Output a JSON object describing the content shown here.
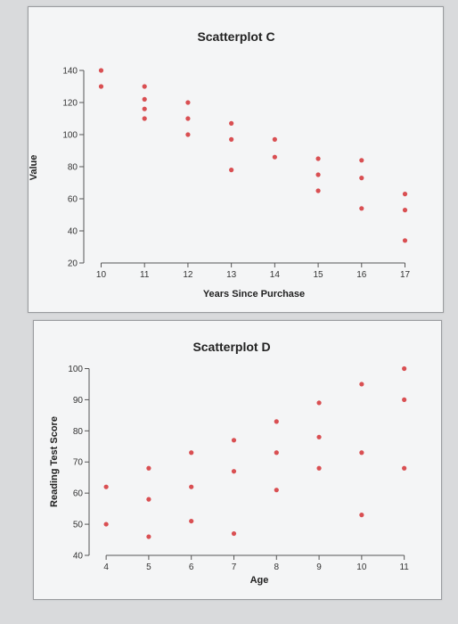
{
  "chart_data": [
    {
      "type": "scatter",
      "title": "Scatterplot C",
      "xlabel": "Years Since Purchase",
      "ylabel": "Value",
      "xlim": [
        9.6,
        17.4
      ],
      "ylim": [
        20,
        145
      ],
      "xticks": [
        10,
        11,
        12,
        13,
        14,
        15,
        16,
        17
      ],
      "yticks": [
        20,
        40,
        60,
        80,
        100,
        120,
        140
      ],
      "points": [
        {
          "x": 10,
          "y": 140
        },
        {
          "x": 10,
          "y": 130
        },
        {
          "x": 11,
          "y": 130
        },
        {
          "x": 11,
          "y": 122
        },
        {
          "x": 11,
          "y": 116
        },
        {
          "x": 11,
          "y": 110
        },
        {
          "x": 12,
          "y": 120
        },
        {
          "x": 12,
          "y": 110
        },
        {
          "x": 12,
          "y": 100
        },
        {
          "x": 13,
          "y": 107
        },
        {
          "x": 13,
          "y": 97
        },
        {
          "x": 13,
          "y": 78
        },
        {
          "x": 14,
          "y": 97
        },
        {
          "x": 14,
          "y": 86
        },
        {
          "x": 15,
          "y": 85
        },
        {
          "x": 15,
          "y": 75
        },
        {
          "x": 15,
          "y": 65
        },
        {
          "x": 16,
          "y": 84
        },
        {
          "x": 16,
          "y": 73
        },
        {
          "x": 16,
          "y": 54
        },
        {
          "x": 17,
          "y": 63
        },
        {
          "x": 17,
          "y": 53
        },
        {
          "x": 17,
          "y": 34
        }
      ],
      "color": "#d94f52"
    },
    {
      "type": "scatter",
      "title": "Scatterplot D",
      "xlabel": "Age",
      "ylabel": "Reading Test Score",
      "xlim": [
        3.6,
        11.3
      ],
      "ylim": [
        40,
        101
      ],
      "xticks": [
        4,
        5,
        6,
        7,
        8,
        9,
        10,
        11
      ],
      "yticks": [
        40,
        50,
        60,
        70,
        80,
        90,
        100
      ],
      "points": [
        {
          "x": 4,
          "y": 62
        },
        {
          "x": 4,
          "y": 50
        },
        {
          "x": 5,
          "y": 68
        },
        {
          "x": 5,
          "y": 58
        },
        {
          "x": 5,
          "y": 46
        },
        {
          "x": 6,
          "y": 73
        },
        {
          "x": 6,
          "y": 62
        },
        {
          "x": 6,
          "y": 51
        },
        {
          "x": 7,
          "y": 77
        },
        {
          "x": 7,
          "y": 67
        },
        {
          "x": 7,
          "y": 47
        },
        {
          "x": 8,
          "y": 83
        },
        {
          "x": 8,
          "y": 73
        },
        {
          "x": 8,
          "y": 61
        },
        {
          "x": 9,
          "y": 89
        },
        {
          "x": 9,
          "y": 78
        },
        {
          "x": 9,
          "y": 68
        },
        {
          "x": 10,
          "y": 95
        },
        {
          "x": 10,
          "y": 73
        },
        {
          "x": 10,
          "y": 53
        },
        {
          "x": 11,
          "y": 100
        },
        {
          "x": 11,
          "y": 90
        },
        {
          "x": 11,
          "y": 68
        }
      ],
      "color": "#d94f52"
    }
  ]
}
